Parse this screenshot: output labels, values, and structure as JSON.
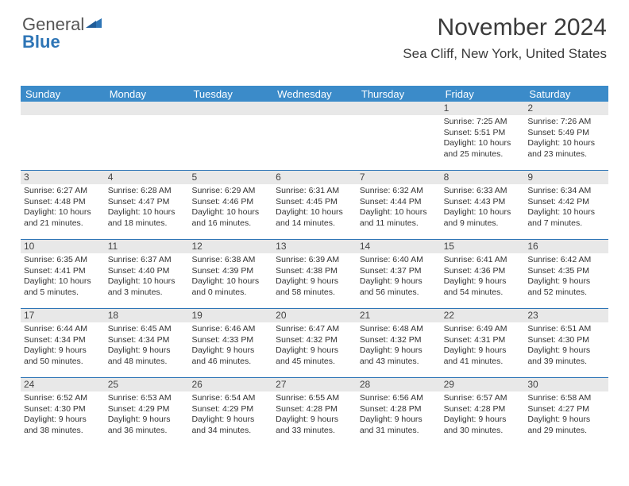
{
  "logo": {
    "text_gray": "General",
    "text_blue": "Blue"
  },
  "title": "November 2024",
  "location": "Sea Cliff, New York, United States",
  "header_bg": "#3b8bc9",
  "rule_color": "#2e75b6",
  "daybar_bg": "#e8e8e8",
  "text_color": "#333333",
  "fonts": {
    "title_pt": 30,
    "location_pt": 17,
    "header_pt": 13,
    "daynum_pt": 12,
    "body_pt": 10.5
  },
  "weekdays": [
    "Sunday",
    "Monday",
    "Tuesday",
    "Wednesday",
    "Thursday",
    "Friday",
    "Saturday"
  ],
  "weeks": [
    [
      {
        "n": "",
        "sunrise": "",
        "sunset": "",
        "daylight": ""
      },
      {
        "n": "",
        "sunrise": "",
        "sunset": "",
        "daylight": ""
      },
      {
        "n": "",
        "sunrise": "",
        "sunset": "",
        "daylight": ""
      },
      {
        "n": "",
        "sunrise": "",
        "sunset": "",
        "daylight": ""
      },
      {
        "n": "",
        "sunrise": "",
        "sunset": "",
        "daylight": ""
      },
      {
        "n": "1",
        "sunrise": "Sunrise: 7:25 AM",
        "sunset": "Sunset: 5:51 PM",
        "daylight": "Daylight: 10 hours and 25 minutes."
      },
      {
        "n": "2",
        "sunrise": "Sunrise: 7:26 AM",
        "sunset": "Sunset: 5:49 PM",
        "daylight": "Daylight: 10 hours and 23 minutes."
      }
    ],
    [
      {
        "n": "3",
        "sunrise": "Sunrise: 6:27 AM",
        "sunset": "Sunset: 4:48 PM",
        "daylight": "Daylight: 10 hours and 21 minutes."
      },
      {
        "n": "4",
        "sunrise": "Sunrise: 6:28 AM",
        "sunset": "Sunset: 4:47 PM",
        "daylight": "Daylight: 10 hours and 18 minutes."
      },
      {
        "n": "5",
        "sunrise": "Sunrise: 6:29 AM",
        "sunset": "Sunset: 4:46 PM",
        "daylight": "Daylight: 10 hours and 16 minutes."
      },
      {
        "n": "6",
        "sunrise": "Sunrise: 6:31 AM",
        "sunset": "Sunset: 4:45 PM",
        "daylight": "Daylight: 10 hours and 14 minutes."
      },
      {
        "n": "7",
        "sunrise": "Sunrise: 6:32 AM",
        "sunset": "Sunset: 4:44 PM",
        "daylight": "Daylight: 10 hours and 11 minutes."
      },
      {
        "n": "8",
        "sunrise": "Sunrise: 6:33 AM",
        "sunset": "Sunset: 4:43 PM",
        "daylight": "Daylight: 10 hours and 9 minutes."
      },
      {
        "n": "9",
        "sunrise": "Sunrise: 6:34 AM",
        "sunset": "Sunset: 4:42 PM",
        "daylight": "Daylight: 10 hours and 7 minutes."
      }
    ],
    [
      {
        "n": "10",
        "sunrise": "Sunrise: 6:35 AM",
        "sunset": "Sunset: 4:41 PM",
        "daylight": "Daylight: 10 hours and 5 minutes."
      },
      {
        "n": "11",
        "sunrise": "Sunrise: 6:37 AM",
        "sunset": "Sunset: 4:40 PM",
        "daylight": "Daylight: 10 hours and 3 minutes."
      },
      {
        "n": "12",
        "sunrise": "Sunrise: 6:38 AM",
        "sunset": "Sunset: 4:39 PM",
        "daylight": "Daylight: 10 hours and 0 minutes."
      },
      {
        "n": "13",
        "sunrise": "Sunrise: 6:39 AM",
        "sunset": "Sunset: 4:38 PM",
        "daylight": "Daylight: 9 hours and 58 minutes."
      },
      {
        "n": "14",
        "sunrise": "Sunrise: 6:40 AM",
        "sunset": "Sunset: 4:37 PM",
        "daylight": "Daylight: 9 hours and 56 minutes."
      },
      {
        "n": "15",
        "sunrise": "Sunrise: 6:41 AM",
        "sunset": "Sunset: 4:36 PM",
        "daylight": "Daylight: 9 hours and 54 minutes."
      },
      {
        "n": "16",
        "sunrise": "Sunrise: 6:42 AM",
        "sunset": "Sunset: 4:35 PM",
        "daylight": "Daylight: 9 hours and 52 minutes."
      }
    ],
    [
      {
        "n": "17",
        "sunrise": "Sunrise: 6:44 AM",
        "sunset": "Sunset: 4:34 PM",
        "daylight": "Daylight: 9 hours and 50 minutes."
      },
      {
        "n": "18",
        "sunrise": "Sunrise: 6:45 AM",
        "sunset": "Sunset: 4:34 PM",
        "daylight": "Daylight: 9 hours and 48 minutes."
      },
      {
        "n": "19",
        "sunrise": "Sunrise: 6:46 AM",
        "sunset": "Sunset: 4:33 PM",
        "daylight": "Daylight: 9 hours and 46 minutes."
      },
      {
        "n": "20",
        "sunrise": "Sunrise: 6:47 AM",
        "sunset": "Sunset: 4:32 PM",
        "daylight": "Daylight: 9 hours and 45 minutes."
      },
      {
        "n": "21",
        "sunrise": "Sunrise: 6:48 AM",
        "sunset": "Sunset: 4:32 PM",
        "daylight": "Daylight: 9 hours and 43 minutes."
      },
      {
        "n": "22",
        "sunrise": "Sunrise: 6:49 AM",
        "sunset": "Sunset: 4:31 PM",
        "daylight": "Daylight: 9 hours and 41 minutes."
      },
      {
        "n": "23",
        "sunrise": "Sunrise: 6:51 AM",
        "sunset": "Sunset: 4:30 PM",
        "daylight": "Daylight: 9 hours and 39 minutes."
      }
    ],
    [
      {
        "n": "24",
        "sunrise": "Sunrise: 6:52 AM",
        "sunset": "Sunset: 4:30 PM",
        "daylight": "Daylight: 9 hours and 38 minutes."
      },
      {
        "n": "25",
        "sunrise": "Sunrise: 6:53 AM",
        "sunset": "Sunset: 4:29 PM",
        "daylight": "Daylight: 9 hours and 36 minutes."
      },
      {
        "n": "26",
        "sunrise": "Sunrise: 6:54 AM",
        "sunset": "Sunset: 4:29 PM",
        "daylight": "Daylight: 9 hours and 34 minutes."
      },
      {
        "n": "27",
        "sunrise": "Sunrise: 6:55 AM",
        "sunset": "Sunset: 4:28 PM",
        "daylight": "Daylight: 9 hours and 33 minutes."
      },
      {
        "n": "28",
        "sunrise": "Sunrise: 6:56 AM",
        "sunset": "Sunset: 4:28 PM",
        "daylight": "Daylight: 9 hours and 31 minutes."
      },
      {
        "n": "29",
        "sunrise": "Sunrise: 6:57 AM",
        "sunset": "Sunset: 4:28 PM",
        "daylight": "Daylight: 9 hours and 30 minutes."
      },
      {
        "n": "30",
        "sunrise": "Sunrise: 6:58 AM",
        "sunset": "Sunset: 4:27 PM",
        "daylight": "Daylight: 9 hours and 29 minutes."
      }
    ]
  ]
}
